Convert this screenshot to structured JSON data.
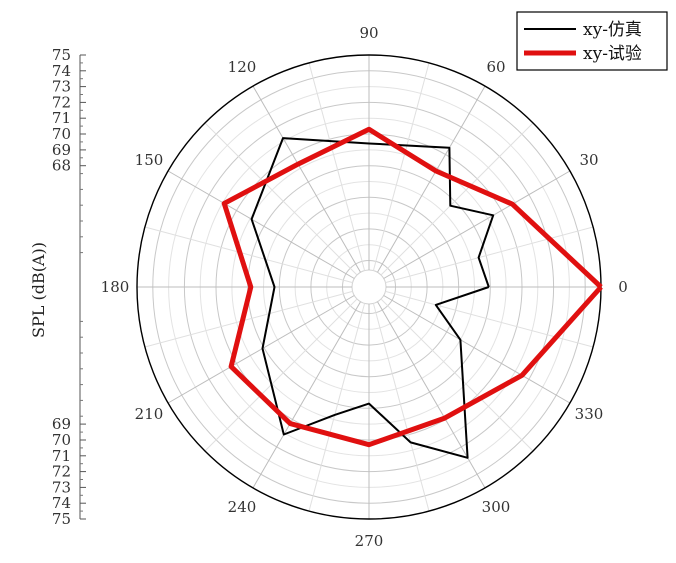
{
  "chart_data": {
    "type": "polar-line",
    "title": "",
    "ylabel": "SPL (dB(A))",
    "angle_ticks": [
      "0",
      "30",
      "60",
      "90",
      "120",
      "150",
      "180",
      "210",
      "240",
      "270",
      "300",
      "330"
    ],
    "radial_tick_labels_upper": [
      "75",
      "74",
      "73",
      "72",
      "71",
      "70",
      "69",
      "68"
    ],
    "radial_tick_labels_lower": [
      "69",
      "70",
      "71",
      "72",
      "73",
      "74",
      "75"
    ],
    "radial_range": [
      61.4,
      75
    ],
    "grid": true,
    "legend_position": "top-right",
    "series": [
      {
        "name": "xy-仿真",
        "color": "#000000",
        "points": [
          {
            "angle": 0,
            "value": 67.9
          },
          {
            "angle": 15,
            "value": 67.5
          },
          {
            "angle": 30,
            "value": 69.4
          },
          {
            "angle": 45,
            "value": 67.6
          },
          {
            "angle": 60,
            "value": 70.5
          },
          {
            "angle": 90,
            "value": 69.4
          },
          {
            "angle": 120,
            "value": 71.2
          },
          {
            "angle": 150,
            "value": 68.9
          },
          {
            "angle": 180,
            "value": 66.3
          },
          {
            "angle": 210,
            "value": 68.1
          },
          {
            "angle": 240,
            "value": 71.1
          },
          {
            "angle": 255,
            "value": 68.7
          },
          {
            "angle": 270,
            "value": 67.7
          },
          {
            "angle": 285,
            "value": 70.5
          },
          {
            "angle": 300,
            "value": 72.8
          },
          {
            "angle": 330,
            "value": 67.0
          },
          {
            "angle": 345,
            "value": 64.7
          },
          {
            "angle": 360,
            "value": 67.9
          }
        ]
      },
      {
        "name": "xy-试验",
        "color": "#e01010",
        "points": [
          {
            "angle": 0,
            "value": 75.0
          },
          {
            "angle": 30,
            "value": 70.8
          },
          {
            "angle": 60,
            "value": 68.8
          },
          {
            "angle": 90,
            "value": 70.3
          },
          {
            "angle": 120,
            "value": 69.3
          },
          {
            "angle": 150,
            "value": 70.9
          },
          {
            "angle": 180,
            "value": 67.8
          },
          {
            "angle": 210,
            "value": 70.4
          },
          {
            "angle": 240,
            "value": 70.3
          },
          {
            "angle": 270,
            "value": 70.3
          },
          {
            "angle": 300,
            "value": 69.9
          },
          {
            "angle": 330,
            "value": 71.5
          },
          {
            "angle": 360,
            "value": 75.0
          }
        ]
      }
    ]
  }
}
